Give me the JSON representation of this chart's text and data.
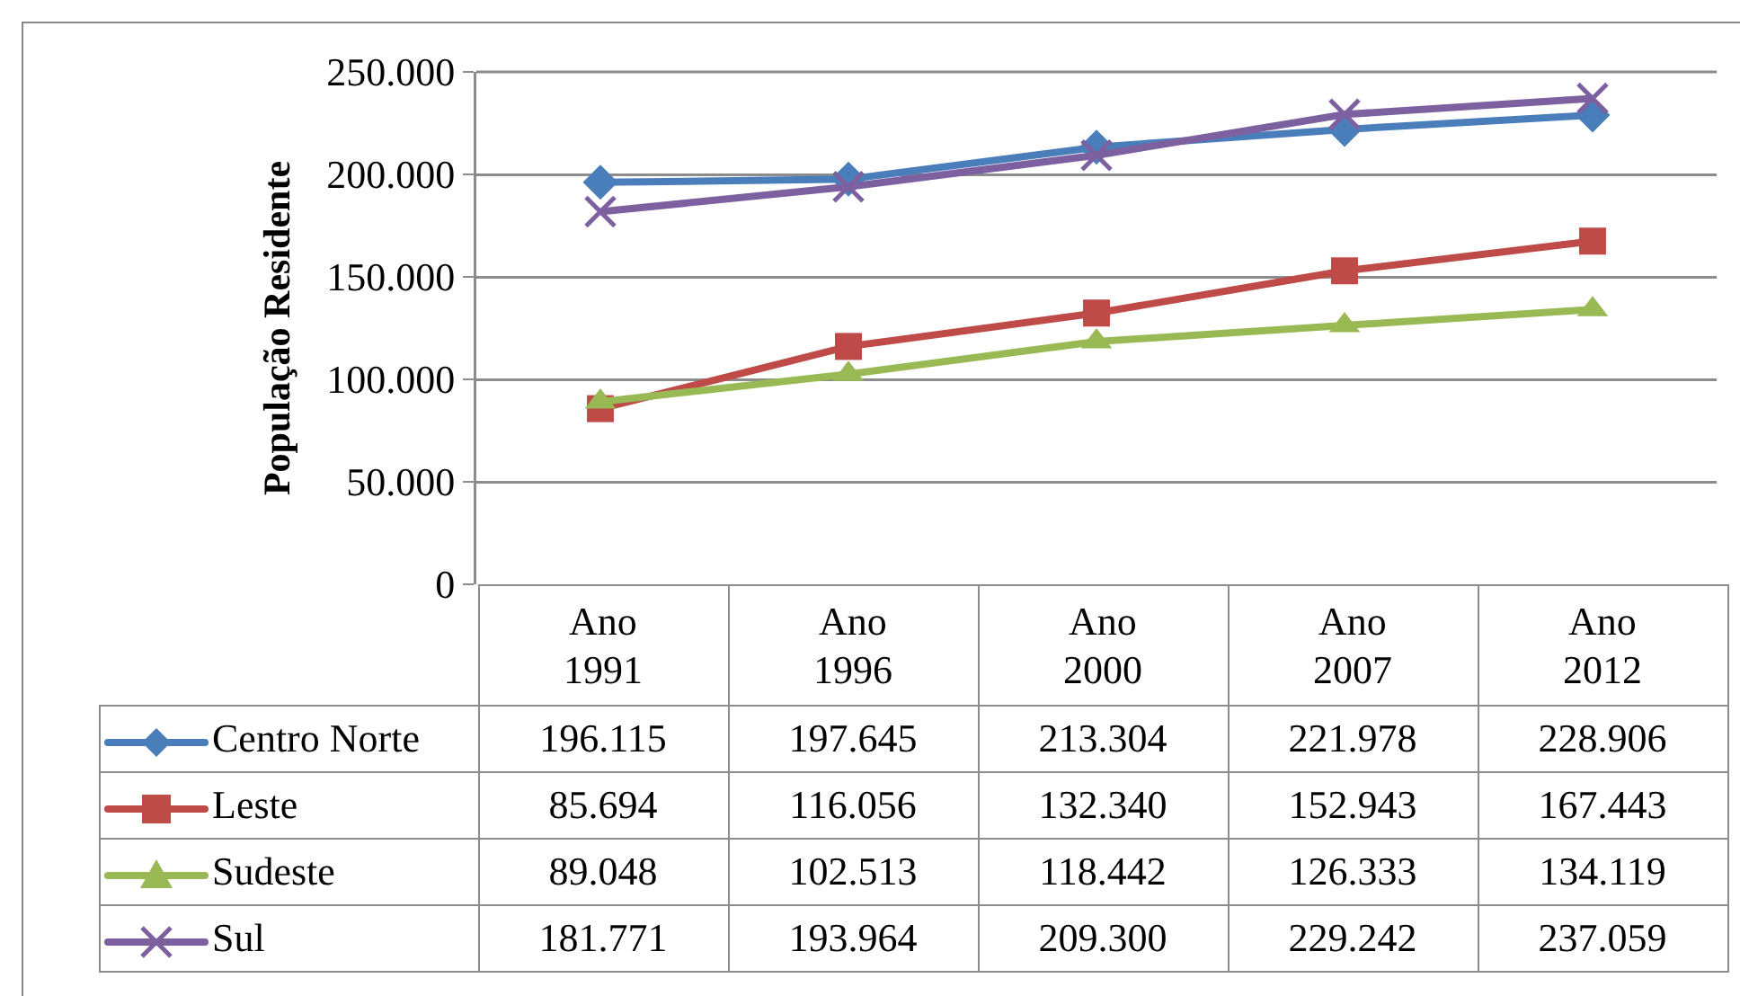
{
  "chart_data": {
    "type": "line",
    "ylabel": "População Residente",
    "categories": [
      "Ano 1991",
      "Ano 1996",
      "Ano 2000",
      "Ano 2007",
      "Ano 2012"
    ],
    "series": [
      {
        "name": "Centro Norte",
        "color": "#4a7ebb",
        "marker": "diamond",
        "values": [
          196115,
          197645,
          213304,
          221978,
          228906
        ],
        "value_labels": [
          "196.115",
          "197.645",
          "213.304",
          "221.978",
          "228.906"
        ]
      },
      {
        "name": "Leste",
        "color": "#be4b48",
        "marker": "square",
        "values": [
          85694,
          116056,
          132340,
          152943,
          167443
        ],
        "value_labels": [
          "85.694",
          "116.056",
          "132.340",
          "152.943",
          "167.443"
        ]
      },
      {
        "name": "Sudeste",
        "color": "#98b954",
        "marker": "triangle",
        "values": [
          89048,
          102513,
          118442,
          126333,
          134119
        ],
        "value_labels": [
          "89.048",
          "102.513",
          "118.442",
          "126.333",
          "134.119"
        ]
      },
      {
        "name": "Sul",
        "color": "#7d60a0",
        "marker": "cross",
        "values": [
          181771,
          193964,
          209300,
          229242,
          237059
        ],
        "value_labels": [
          "181.771",
          "193.964",
          "209.300",
          "229.242",
          "237.059"
        ]
      }
    ],
    "ylim": [
      0,
      250000
    ],
    "yticks": [
      0,
      {
        "value": 50000,
        "label": "50.000"
      },
      {
        "value": 100000,
        "label": "100.000"
      },
      {
        "value": 150000,
        "label": "150.000"
      },
      {
        "value": 200000,
        "label": "200.000"
      },
      {
        "value": 250000,
        "label": "250.000"
      }
    ],
    "grid": "y",
    "legend": "bottom left",
    "line_style": "solid"
  }
}
